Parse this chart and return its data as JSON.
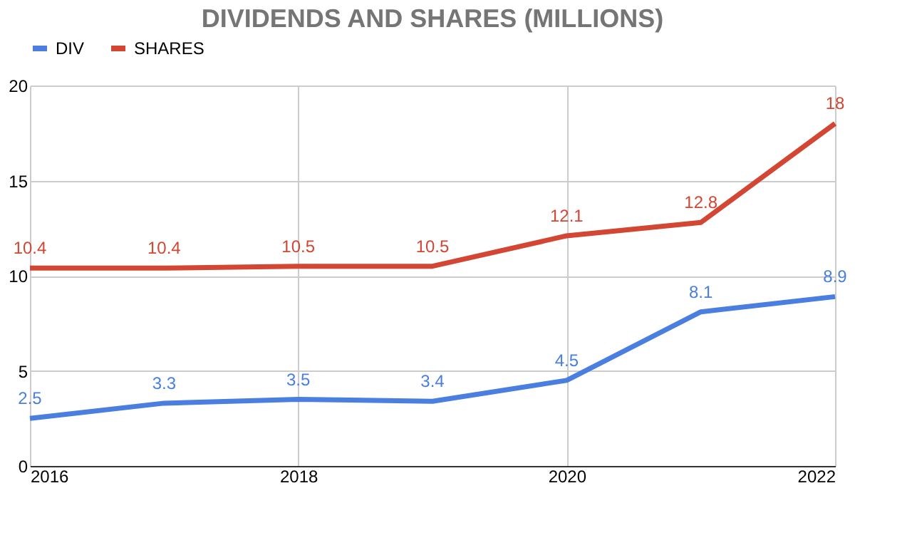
{
  "chart_data": {
    "type": "line",
    "title": "DIVIDENDS AND SHARES (MILLIONS)",
    "x": [
      2016,
      2017,
      2018,
      2019,
      2020,
      2021,
      2022
    ],
    "series": [
      {
        "name": "DIV",
        "color": "#4a7fe0",
        "values": [
          2.5,
          3.3,
          3.5,
          3.4,
          4.5,
          8.1,
          8.9
        ]
      },
      {
        "name": "SHARES",
        "color": "#d24633",
        "values": [
          10.4,
          10.4,
          10.5,
          10.5,
          12.1,
          12.8,
          18
        ]
      }
    ],
    "xlim": [
      2016,
      2022
    ],
    "xticks": [
      2016,
      2018,
      2020,
      2022
    ],
    "ylim": [
      0,
      20
    ],
    "yticks": [
      0,
      5,
      10,
      15,
      20
    ],
    "grid": true,
    "legend": "top",
    "data_labels": true,
    "marker": "none",
    "line_style": "solid"
  }
}
